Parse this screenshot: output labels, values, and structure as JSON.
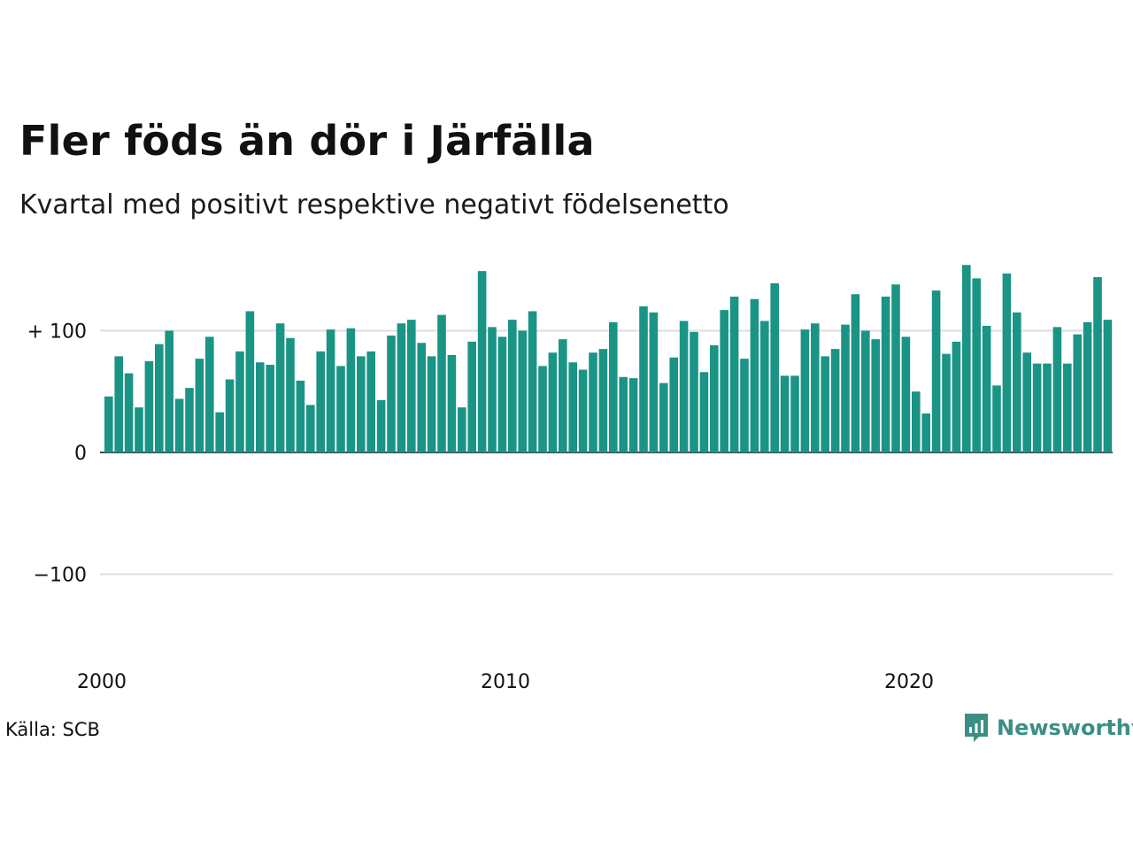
{
  "title": "Fler föds än dör i Järfälla",
  "subtitle": "Kvartal med positivt respektive negativt födelsenetto",
  "source": "Källa: SCB",
  "brand": {
    "name": "Newsworthy",
    "icon": "bar-chart-speech-bubble-icon"
  },
  "colors": {
    "positive": "#1a9485",
    "axis": "#111111",
    "grid": "#dddddd"
  },
  "chart_data": {
    "type": "bar",
    "title": "Fler föds än dör i Järfälla",
    "subtitle": "Kvartal med positivt respektive negativt födelsenetto",
    "x_start": "2000 Q1",
    "x_ticks": [
      "2000",
      "2010",
      "2020"
    ],
    "y_ticks": [
      {
        "value": 100,
        "label": "+ 100"
      },
      {
        "value": 0,
        "label": "0"
      },
      {
        "value": -100,
        "label": "−100"
      }
    ],
    "ylim": [
      -170,
      155
    ],
    "grid": true,
    "values": [
      46,
      79,
      65,
      37,
      75,
      89,
      100,
      44,
      53,
      77,
      95,
      33,
      60,
      83,
      116,
      74,
      72,
      106,
      94,
      59,
      39,
      83,
      101,
      71,
      102,
      79,
      83,
      43,
      96,
      106,
      109,
      90,
      79,
      113,
      80,
      37,
      91,
      149,
      103,
      95,
      109,
      100,
      116,
      71,
      82,
      93,
      74,
      68,
      82,
      85,
      107,
      62,
      61,
      120,
      115,
      57,
      78,
      108,
      99,
      66,
      88,
      117,
      128,
      77,
      126,
      108,
      139,
      63,
      63,
      101,
      106,
      79,
      85,
      105,
      130,
      100,
      93,
      128,
      138,
      95,
      50,
      32,
      133,
      81,
      91,
      154,
      143,
      104,
      55,
      147,
      115,
      82,
      73,
      73,
      103,
      73,
      97,
      107,
      144,
      109
    ]
  }
}
